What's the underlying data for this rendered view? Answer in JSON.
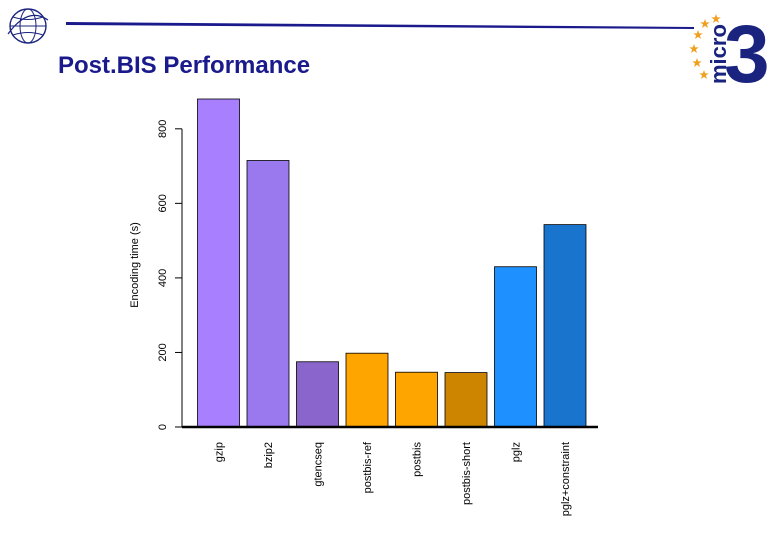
{
  "slide": {
    "title": "Post.BIS Performance"
  },
  "logos": {
    "brand_text": "micro",
    "brand_number": "3"
  },
  "colors": {
    "title": "#1a1a8c",
    "rule": "#1a1a8c",
    "brand_blue": "#1a237e",
    "stars": "#f0a020"
  },
  "chart_data": {
    "type": "bar",
    "title": "",
    "xlabel": "",
    "ylabel": "Encoding time (s)",
    "ylim": [
      0,
      880
    ],
    "yticks": [
      0,
      200,
      400,
      600,
      800
    ],
    "grid": false,
    "legend": "none",
    "categories": [
      "gzip",
      "bzip2",
      "gtencseq",
      "postbis-ref",
      "postbis",
      "postbis-short",
      "pglz",
      "pglz+constraint"
    ],
    "values": [
      880,
      715,
      175,
      198,
      147,
      146,
      430,
      543
    ],
    "colors": [
      "#a880ff",
      "#9a78ee",
      "#8a66cc",
      "#ffa500",
      "#ffa500",
      "#cd8500",
      "#1e90ff",
      "#1874cd"
    ]
  }
}
